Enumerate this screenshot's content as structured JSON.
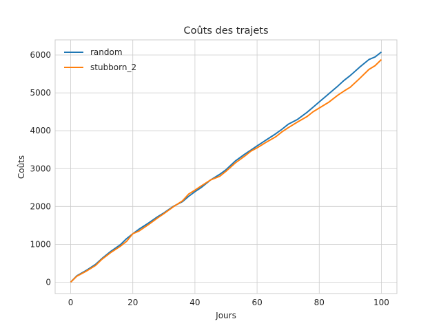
{
  "chart_data": {
    "type": "line",
    "title": "Coûts des trajets",
    "xlabel": "Jours",
    "ylabel": "Coûts",
    "xlim": [
      -5,
      105
    ],
    "ylim": [
      -300,
      6400
    ],
    "xticks": [
      0,
      20,
      40,
      60,
      80,
      100
    ],
    "yticks": [
      0,
      1000,
      2000,
      3000,
      4000,
      5000,
      6000
    ],
    "grid": true,
    "legend_position": "top-left",
    "series": [
      {
        "name": "random",
        "color": "#1f77b4",
        "x": [
          0,
          2,
          5,
          8,
          10,
          13,
          16,
          18,
          20,
          22,
          25,
          28,
          30,
          33,
          36,
          38,
          40,
          42,
          45,
          48,
          50,
          53,
          56,
          58,
          60,
          63,
          66,
          68,
          70,
          73,
          76,
          78,
          80,
          83,
          86,
          88,
          90,
          93,
          96,
          98,
          100
        ],
        "y": [
          0,
          170,
          310,
          470,
          620,
          820,
          990,
          1150,
          1280,
          1400,
          1560,
          1730,
          1830,
          2000,
          2130,
          2270,
          2390,
          2500,
          2700,
          2850,
          2970,
          3200,
          3380,
          3490,
          3600,
          3760,
          3920,
          4040,
          4170,
          4300,
          4480,
          4620,
          4760,
          4970,
          5180,
          5330,
          5460,
          5680,
          5880,
          5950,
          6080
        ]
      },
      {
        "name": "stubborn_2",
        "color": "#ff7f0e",
        "x": [
          0,
          2,
          5,
          8,
          10,
          13,
          16,
          18,
          20,
          22,
          25,
          28,
          30,
          33,
          36,
          38,
          40,
          42,
          45,
          48,
          50,
          53,
          56,
          58,
          60,
          63,
          66,
          68,
          70,
          73,
          76,
          78,
          80,
          83,
          86,
          88,
          90,
          93,
          96,
          98,
          100
        ],
        "y": [
          0,
          160,
          290,
          440,
          600,
          790,
          950,
          1080,
          1280,
          1350,
          1520,
          1700,
          1810,
          1990,
          2150,
          2330,
          2430,
          2540,
          2700,
          2800,
          2930,
          3150,
          3330,
          3460,
          3550,
          3700,
          3840,
          3970,
          4080,
          4230,
          4370,
          4500,
          4600,
          4750,
          4940,
          5050,
          5150,
          5380,
          5620,
          5720,
          5880
        ]
      }
    ]
  }
}
